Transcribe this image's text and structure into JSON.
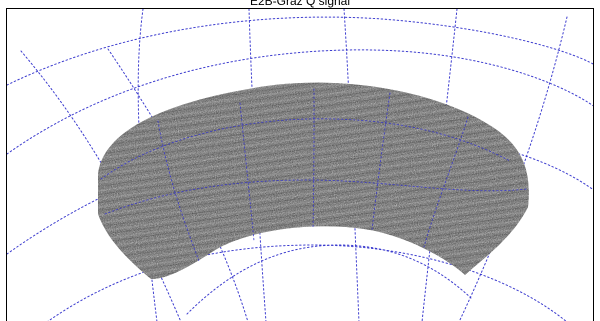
{
  "title": "E2B-Graz Q signal",
  "colors": {
    "graticule": "#3333cc",
    "frame": "#000000",
    "background": "#ffffff",
    "map_dark": "#111111",
    "map_light": "#f2f2f2"
  },
  "map": {
    "projection": "orthographic-style graticule overlay",
    "colormap": "grayscale noise map"
  }
}
